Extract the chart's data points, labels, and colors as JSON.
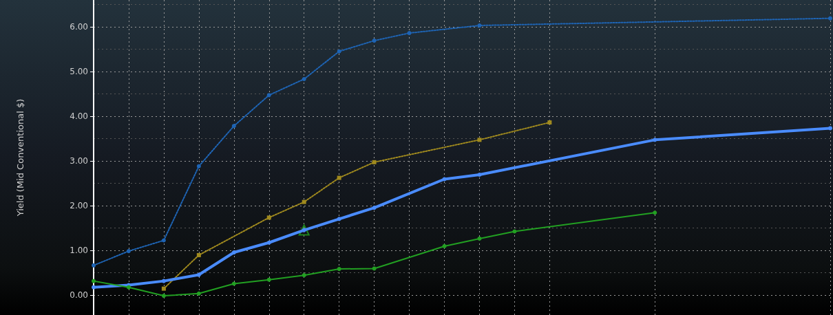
{
  "chart_data": {
    "type": "line",
    "ylabel": "Yield (Mid Conventional $)",
    "categories": [
      null,
      null,
      null,
      null,
      null,
      null,
      null,
      null,
      null,
      null,
      null,
      null,
      null,
      null,
      null,
      null,
      null,
      null,
      null,
      null,
      null,
      null
    ],
    "series": [
      {
        "color": "#1e64b4",
        "marker": "circle",
        "line_style": "dotted",
        "values": [
          0.66,
          0.98,
          1.22,
          2.88,
          3.78,
          4.47,
          4.83,
          5.45,
          5.69,
          5.86,
          null,
          6.03,
          null,
          null,
          null,
          null,
          null,
          null,
          null,
          null,
          null,
          6.19
        ]
      },
      {
        "color": "#a08a1e",
        "marker": "square",
        "line_style": "dotted",
        "values": [
          null,
          null,
          0.14,
          0.89,
          null,
          1.73,
          2.08,
          2.62,
          2.97,
          null,
          null,
          3.47,
          null,
          3.86,
          null,
          null,
          null,
          null,
          null,
          null,
          null,
          null
        ]
      },
      {
        "color": "#4a8cff",
        "marker": "circle",
        "line_style": "solid",
        "values": [
          0.17,
          0.22,
          0.31,
          0.45,
          0.95,
          1.17,
          1.45,
          1.7,
          1.95,
          null,
          2.59,
          2.69,
          null,
          null,
          null,
          null,
          3.47,
          null,
          null,
          null,
          null,
          3.73
        ]
      },
      {
        "color": "#22a022",
        "marker": "circle",
        "line_style": "solid",
        "values": [
          0.31,
          0.17,
          -0.02,
          0.03,
          0.25,
          0.34,
          0.44,
          0.58,
          0.59,
          null,
          1.09,
          1.26,
          1.42,
          null,
          null,
          null,
          1.84,
          null,
          null,
          null,
          null,
          null
        ]
      },
      {
        "type": "scatter",
        "color": "#22a022",
        "marker": "triangle",
        "values": [
          null,
          null,
          null,
          null,
          null,
          null,
          1.45,
          null,
          null,
          null,
          null,
          null,
          null,
          null,
          null,
          null,
          null,
          null,
          null,
          null,
          null,
          null
        ]
      }
    ],
    "ylim": [
      -0.45,
      6.6
    ],
    "yticks": [
      {
        "value": 0,
        "label": "0.00"
      },
      {
        "value": 1,
        "label": "1.00"
      },
      {
        "value": 2,
        "label": "2.00"
      },
      {
        "value": 3,
        "label": "3.00"
      },
      {
        "value": 4,
        "label": "4.00"
      },
      {
        "value": 5,
        "label": "5.00"
      },
      {
        "value": 6,
        "label": "6.00"
      }
    ],
    "grid": true,
    "tick_labels": "y"
  }
}
